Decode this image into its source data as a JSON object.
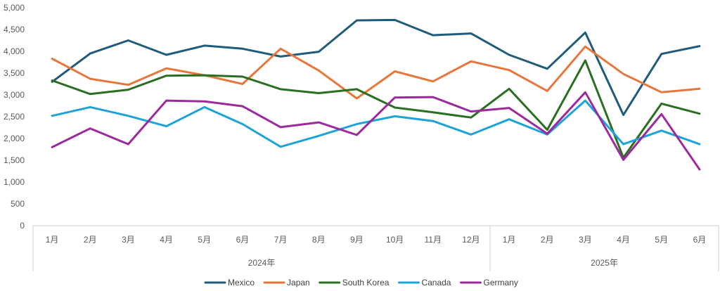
{
  "chart_data": {
    "type": "line",
    "title": "",
    "xlabel": "",
    "ylabel": "",
    "ylim": [
      0,
      5000
    ],
    "yticks": [
      "0",
      "500",
      "1,000",
      "1,500",
      "2,000",
      "2,500",
      "3,000",
      "3,500",
      "4,000",
      "4,500",
      "5,000"
    ],
    "categories": [
      "1月",
      "2月",
      "3月",
      "4月",
      "5月",
      "6月",
      "7月",
      "8月",
      "9月",
      "10月",
      "11月",
      "12月",
      "1月",
      "2月",
      "3月",
      "4月",
      "5月",
      "6月"
    ],
    "groups": [
      {
        "label": "2024年",
        "count": 12
      },
      {
        "label": "2025年",
        "count": 6
      }
    ],
    "grid": false,
    "legend_position": "bottom",
    "series": [
      {
        "name": "Mexico",
        "color": "#1f5b7a",
        "values": [
          3300,
          3950,
          4250,
          3920,
          4130,
          4060,
          3880,
          3990,
          4710,
          4720,
          4370,
          4410,
          3920,
          3600,
          4430,
          2540,
          3940,
          4120
        ]
      },
      {
        "name": "Japan",
        "color": "#e8763a",
        "values": [
          3830,
          3370,
          3230,
          3610,
          3450,
          3250,
          4060,
          3560,
          2920,
          3540,
          3310,
          3770,
          3570,
          3090,
          4110,
          3480,
          3060,
          3140
        ]
      },
      {
        "name": "South Korea",
        "color": "#2a6e22",
        "values": [
          3330,
          3020,
          3120,
          3440,
          3450,
          3420,
          3130,
          3040,
          3130,
          2710,
          2600,
          2480,
          3140,
          2200,
          3790,
          1560,
          2800,
          2570
        ]
      },
      {
        "name": "Canada",
        "color": "#1ea3d9",
        "values": [
          2520,
          2720,
          2520,
          2280,
          2720,
          2330,
          1810,
          2060,
          2330,
          2510,
          2400,
          2090,
          2440,
          2090,
          2870,
          1870,
          2180,
          1870
        ]
      },
      {
        "name": "Germany",
        "color": "#9c2a9c",
        "values": [
          1800,
          2230,
          1870,
          2870,
          2850,
          2740,
          2260,
          2370,
          2080,
          2940,
          2950,
          2620,
          2700,
          2110,
          3060,
          1510,
          2560,
          1290
        ]
      }
    ]
  }
}
